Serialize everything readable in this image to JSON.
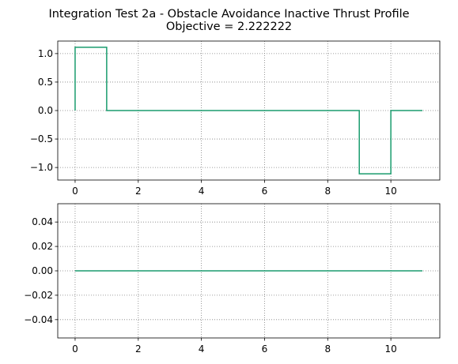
{
  "figure": {
    "title_line1": "Integration Test 2a - Obstacle Avoidance Inactive Thrust Profile",
    "title_line2": "Objective = 2.222222"
  },
  "colors": {
    "line": "#1a9c6e",
    "grid": "#808080",
    "axes": "#000000",
    "background": "#ffffff"
  },
  "chart_data": [
    {
      "type": "line",
      "step": "post",
      "title": "",
      "xlabel": "",
      "ylabel": "",
      "xlim": [
        -0.55,
        11.55
      ],
      "ylim": [
        -1.22,
        1.22
      ],
      "grid": true,
      "xticks": [
        0,
        2,
        4,
        6,
        8,
        10
      ],
      "xtick_labels": [
        "0",
        "2",
        "4",
        "6",
        "8",
        "10"
      ],
      "yticks": [
        1.0,
        0.5,
        0.0,
        -0.5,
        -1.0
      ],
      "ytick_labels": [
        "1.0",
        "0.5",
        "0.0",
        "−0.5",
        "−1.0"
      ],
      "series": [
        {
          "x": [
            0,
            1,
            2,
            3,
            4,
            5,
            6,
            7,
            8,
            9,
            10,
            11
          ],
          "y": [
            1.111111,
            0,
            0,
            0,
            0,
            0,
            0,
            0,
            0,
            -1.111111,
            0,
            0
          ]
        }
      ]
    },
    {
      "type": "line",
      "step": "post",
      "title": "",
      "xlabel": "",
      "ylabel": "",
      "xlim": [
        -0.55,
        11.55
      ],
      "ylim": [
        -0.055,
        0.055
      ],
      "grid": true,
      "xticks": [
        0,
        2,
        4,
        6,
        8,
        10
      ],
      "xtick_labels": [
        "0",
        "2",
        "4",
        "6",
        "8",
        "10"
      ],
      "yticks": [
        0.04,
        0.02,
        0.0,
        -0.02,
        -0.04
      ],
      "ytick_labels": [
        "0.04",
        "0.02",
        "0.00",
        "−0.02",
        "−0.04"
      ],
      "series": [
        {
          "x": [
            0,
            1,
            2,
            3,
            4,
            5,
            6,
            7,
            8,
            9,
            10,
            11
          ],
          "y": [
            0,
            0,
            0,
            0,
            0,
            0,
            0,
            0,
            0,
            0,
            0,
            0
          ]
        }
      ]
    }
  ]
}
